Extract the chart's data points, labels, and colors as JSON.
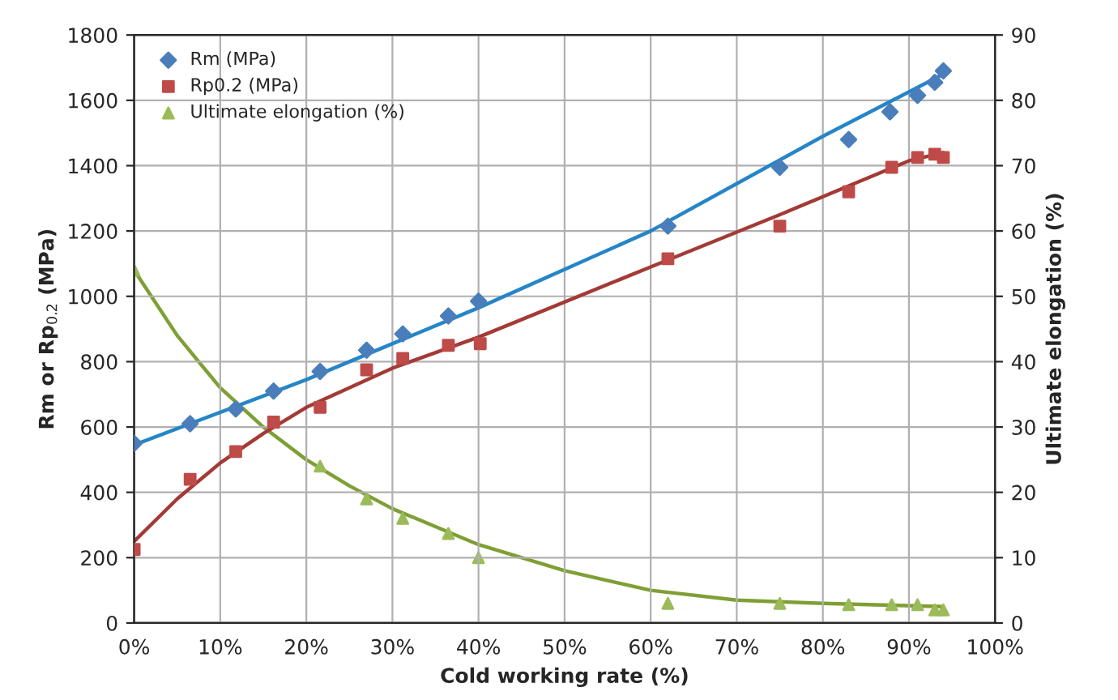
{
  "chart_data": {
    "type": "scatter",
    "xlabel": "Cold working rate (%)",
    "ylabel": "Rm or Rp$_{0.2}$ (MPa)",
    "y2label": "Ultimate elongation (%)",
    "xlim": [
      0,
      100
    ],
    "xticks": [
      {
        "value": 0,
        "label": "0%"
      },
      {
        "value": 10,
        "label": "10%"
      },
      {
        "value": 20,
        "label": "20%"
      },
      {
        "value": 30,
        "label": "30%"
      },
      {
        "value": 40,
        "label": "40%"
      },
      {
        "value": 50,
        "label": "50%"
      },
      {
        "value": 60,
        "label": "60%"
      },
      {
        "value": 70,
        "label": "70%"
      },
      {
        "value": 80,
        "label": "80%"
      },
      {
        "value": 90,
        "label": "90%"
      },
      {
        "value": 100,
        "label": "100%"
      }
    ],
    "ylim": [
      0,
      1800
    ],
    "yticks": [
      0,
      200,
      400,
      600,
      800,
      1000,
      1200,
      1400,
      1600,
      1800
    ],
    "y2lim": [
      0,
      90
    ],
    "y2ticks": [
      0,
      10,
      20,
      30,
      40,
      50,
      60,
      70,
      80,
      90
    ],
    "grid": true,
    "legend": "top left",
    "series": [
      {
        "name": "Rm (MPa)",
        "marker": "diamond",
        "color": "#4a7ebb",
        "x": [
          0,
          6.5,
          11.8,
          16.2,
          21.6,
          27,
          31.2,
          36.5,
          40,
          62,
          75,
          83,
          87.8,
          91,
          93,
          94
        ],
        "values": [
          550,
          610,
          655,
          710,
          770,
          835,
          885,
          940,
          985,
          1215,
          1395,
          1480,
          1565,
          1615,
          1655,
          1690
        ]
      },
      {
        "name": "Rp0.2 (MPa)",
        "marker": "square",
        "color": "#be4b48",
        "x": [
          0,
          6.5,
          11.8,
          16.2,
          21.6,
          27,
          31.2,
          36.5,
          40.2,
          62,
          75,
          83,
          88,
          91,
          93,
          94
        ],
        "values": [
          225,
          440,
          525,
          615,
          660,
          775,
          810,
          850,
          855,
          1115,
          1215,
          1320,
          1395,
          1425,
          1435,
          1425
        ]
      },
      {
        "name": "Ultimate elongation (%)",
        "marker": "triangle",
        "color": "#9bbb59",
        "axis": "y2",
        "x": [
          0,
          21.6,
          27,
          31.2,
          36.5,
          40,
          62,
          75,
          83,
          88,
          91,
          93,
          94
        ],
        "values": [
          54,
          24,
          19,
          16,
          13.7,
          10,
          3,
          3,
          2.8,
          2.8,
          2.8,
          2,
          2
        ]
      },
      {
        "type": "line",
        "color": "#2585c7",
        "x": [
          0,
          20,
          40,
          60,
          80,
          94
        ],
        "values": [
          545,
          745,
          965,
          1200,
          1490,
          1680
        ]
      },
      {
        "type": "line",
        "color": "#a33a36",
        "x": [
          0,
          5,
          10,
          15,
          20,
          30,
          40,
          60,
          75,
          90,
          94
        ],
        "values": [
          250,
          380,
          490,
          580,
          660,
          780,
          875,
          1090,
          1250,
          1415,
          1440
        ]
      },
      {
        "type": "line",
        "color": "#7f9f35",
        "axis": "y2",
        "x": [
          0,
          5,
          10,
          15,
          20,
          25,
          30,
          40,
          50,
          60,
          70,
          80,
          94
        ],
        "values": [
          54,
          44,
          36,
          30,
          25,
          21,
          17.5,
          12,
          8,
          5,
          3.5,
          3,
          2.5
        ]
      }
    ]
  }
}
